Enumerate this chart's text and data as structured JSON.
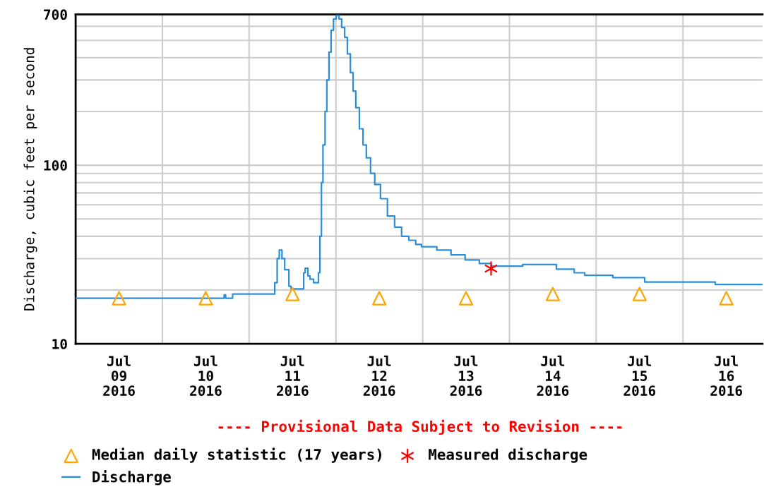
{
  "chart_data": {
    "type": "step",
    "ylabel": "Discharge, cubic feet per second",
    "log": "y",
    "grid": true,
    "legend": "bottom left",
    "annotations": [
      "---- Provisional Data Subject to Revision ----"
    ],
    "xlim": [
      "2016-07-09T00:00",
      "2016-07-16T22:00"
    ],
    "xticks": [
      {
        "value": "2016-07-09T00:00",
        "label": null
      },
      {
        "value": "2016-07-09T12:00",
        "label": "Jul\n09\n2016"
      },
      {
        "value": "2016-07-10T00:00",
        "label": null
      },
      {
        "value": "2016-07-10T12:00",
        "label": "Jul\n10\n2016"
      },
      {
        "value": "2016-07-11T00:00",
        "label": null
      },
      {
        "value": "2016-07-11T12:00",
        "label": "Jul\n11\n2016"
      },
      {
        "value": "2016-07-12T00:00",
        "label": null
      },
      {
        "value": "2016-07-12T12:00",
        "label": "Jul\n12\n2016"
      },
      {
        "value": "2016-07-13T00:00",
        "label": null
      },
      {
        "value": "2016-07-13T12:00",
        "label": "Jul\n13\n2016"
      },
      {
        "value": "2016-07-14T00:00",
        "label": null
      },
      {
        "value": "2016-07-14T12:00",
        "label": "Jul\n14\n2016"
      },
      {
        "value": "2016-07-15T00:00",
        "label": null
      },
      {
        "value": "2016-07-15T12:00",
        "label": "Jul\n15\n2016"
      },
      {
        "value": "2016-07-16T00:00",
        "label": null
      },
      {
        "value": "2016-07-16T12:00",
        "label": "Jul\n16\n2016"
      }
    ],
    "ylim": [
      10,
      700
    ],
    "yticks": [
      10,
      {
        "value": 20,
        "label": null
      },
      {
        "value": 30,
        "label": null
      },
      {
        "value": 40,
        "label": null
      },
      {
        "value": 50,
        "label": null
      },
      {
        "value": 60,
        "label": null
      },
      {
        "value": 70,
        "label": null
      },
      {
        "value": 80,
        "label": null
      },
      {
        "value": 90,
        "label": null
      },
      100,
      {
        "value": 200,
        "label": null
      },
      {
        "value": 300,
        "label": null
      },
      {
        "value": 400,
        "label": null
      },
      {
        "value": 500,
        "label": null
      },
      {
        "value": 600,
        "label": null
      },
      700
    ],
    "series": [
      {
        "name": "Median daily statistic (17 years)",
        "type": "scatter",
        "marker": "triangle",
        "color": "#ffa500",
        "x": [
          "2016-07-09T12:00",
          "2016-07-10T12:00",
          "2016-07-11T12:00",
          "2016-07-12T12:00",
          "2016-07-13T12:00",
          "2016-07-14T12:00",
          "2016-07-15T12:00",
          "2016-07-16T12:00"
        ],
        "values": [
          18,
          18,
          19,
          18,
          18,
          19,
          19,
          18
        ]
      },
      {
        "name": "Measured discharge",
        "type": "scatter",
        "marker": "cross",
        "color": "#ff0000",
        "x": [
          "2016-07-13T18:55"
        ],
        "values": [
          26.4
        ]
      },
      {
        "name": "Discharge",
        "color": "#2a8fd8",
        "line_style": "solid",
        "x": [
          "2016-07-09T00:00",
          "2016-07-10T16:40",
          "2016-07-10T17:05",
          "2016-07-10T17:30",
          "2016-07-10T19:25",
          "2016-07-11T06:45",
          "2016-07-11T07:05",
          "2016-07-11T07:45",
          "2016-07-11T08:20",
          "2016-07-11T09:05",
          "2016-07-11T09:50",
          "2016-07-11T11:00",
          "2016-07-11T11:35",
          "2016-07-11T14:30",
          "2016-07-11T15:05",
          "2016-07-11T15:30",
          "2016-07-11T16:15",
          "2016-07-11T16:50",
          "2016-07-11T17:50",
          "2016-07-11T18:25",
          "2016-07-11T19:10",
          "2016-07-11T19:35",
          "2016-07-11T20:00",
          "2016-07-11T20:25",
          "2016-07-11T21:00",
          "2016-07-11T21:30",
          "2016-07-11T22:05",
          "2016-07-11T22:40",
          "2016-07-11T23:20",
          "2016-07-12T00:05",
          "2016-07-12T00:50",
          "2016-07-12T01:35",
          "2016-07-12T02:25",
          "2016-07-12T03:10",
          "2016-07-12T04:00",
          "2016-07-12T04:45",
          "2016-07-12T05:30",
          "2016-07-12T06:30",
          "2016-07-12T07:30",
          "2016-07-12T08:25",
          "2016-07-12T09:35",
          "2016-07-12T10:45",
          "2016-07-12T12:20",
          "2016-07-12T14:15",
          "2016-07-12T16:15",
          "2016-07-12T18:10",
          "2016-07-12T20:10",
          "2016-07-12T22:05",
          "2016-07-12T23:40",
          "2016-07-13T03:55",
          "2016-07-13T07:50",
          "2016-07-13T11:45",
          "2016-07-13T15:40",
          "2016-07-13T18:55",
          "2016-07-13T23:25",
          "2016-07-14T03:40",
          "2016-07-14T09:10",
          "2016-07-14T13:00",
          "2016-07-14T17:55",
          "2016-07-14T20:50",
          "2016-07-15T03:40",
          "2016-07-15T04:35",
          "2016-07-15T12:50",
          "2016-07-15T13:25",
          "2016-07-16T07:55",
          "2016-07-16T08:55",
          "2016-07-16T22:00"
        ],
        "values": [
          18,
          18,
          18.8,
          18,
          19,
          19,
          22,
          30,
          33.5,
          30,
          26,
          21,
          20.3,
          20.3,
          25,
          26.5,
          24,
          23,
          22,
          22,
          25,
          40,
          80,
          130,
          200,
          300,
          430,
          570,
          660,
          690,
          660,
          590,
          520,
          420,
          330,
          260,
          210,
          160,
          130,
          110,
          90,
          78,
          65,
          52,
          45,
          40,
          38,
          36,
          35,
          33.5,
          31.5,
          29.5,
          28.2,
          27.2,
          27.2,
          27.8,
          27.8,
          26.2,
          25,
          24.2,
          24.2,
          23.5,
          23.5,
          22.2,
          22.2,
          21.5,
          21.5
        ]
      }
    ]
  }
}
